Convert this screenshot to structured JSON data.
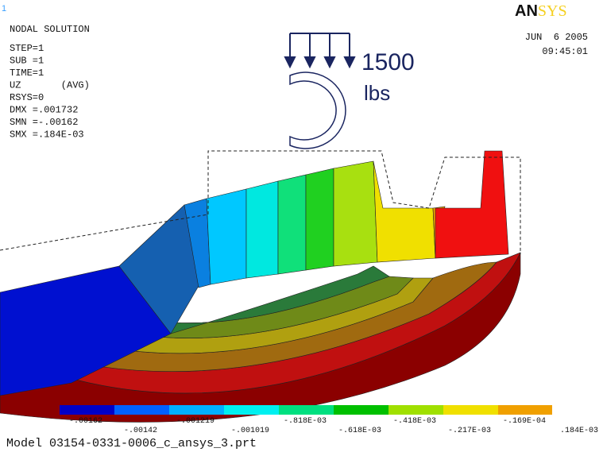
{
  "viewport_id": "1",
  "logo": [
    "AN",
    "SYS"
  ],
  "info": {
    "title": "NODAL SOLUTION",
    "lines": [
      "STEP=1",
      "SUB =1",
      "TIME=1",
      "UZ       (AVG)",
      "RSYS=0",
      "DMX =.001732",
      "SMN =-.00162",
      "SMX =.184E-03"
    ]
  },
  "date": "JUN  6 2005",
  "time": "09:45:01",
  "load": {
    "value": "1500",
    "unit": "lbs"
  },
  "legend": {
    "labels": [
      "-.00162",
      "-.00142",
      "-.001219",
      "-.001019",
      "-.818E-03",
      "-.618E-03",
      "-.418E-03",
      "-.217E-03",
      "-.169E-04",
      ".184E-03"
    ]
  },
  "caption": "Model 03154-0331-0006_c_ansys_3.prt"
}
